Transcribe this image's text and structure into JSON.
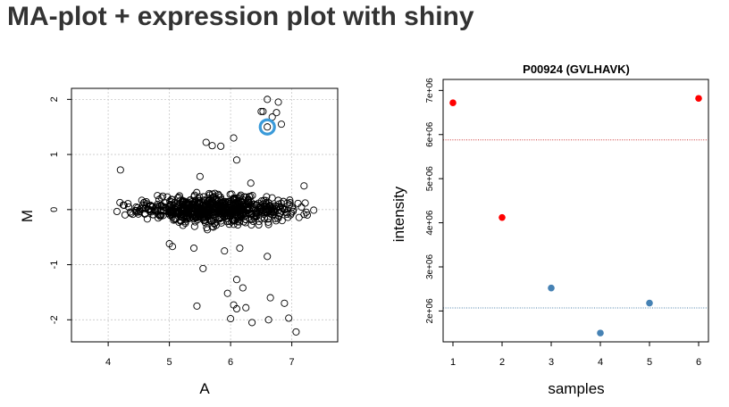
{
  "page": {
    "title": "MA-plot + expression plot with shiny"
  },
  "chart_data": [
    {
      "type": "scatter",
      "title": "",
      "xlabel": "A",
      "ylabel": "M",
      "xlim": [
        3.4,
        7.75
      ],
      "ylim": [
        -2.4,
        2.2
      ],
      "xticks": [
        4,
        5,
        6,
        7
      ],
      "yticks": [
        -2,
        -1,
        0,
        1,
        2
      ],
      "grid": true,
      "highlight": {
        "x": 6.6,
        "y": 1.5,
        "color": "#3a9ad9"
      },
      "bulk_cloud": {
        "x_range": [
          3.9,
          7.55
        ],
        "y_range": [
          -0.5,
          0.45
        ],
        "center_y": 0
      },
      "points": [
        [
          6.6,
          2.0
        ],
        [
          6.78,
          1.95
        ],
        [
          6.5,
          1.78
        ],
        [
          6.53,
          1.78
        ],
        [
          6.75,
          1.76
        ],
        [
          6.68,
          1.68
        ],
        [
          6.6,
          1.5
        ],
        [
          6.83,
          1.55
        ],
        [
          5.6,
          1.22
        ],
        [
          5.7,
          1.16
        ],
        [
          5.84,
          1.15
        ],
        [
          6.05,
          1.3
        ],
        [
          6.1,
          0.9
        ],
        [
          4.2,
          0.72
        ],
        [
          5.5,
          0.6
        ],
        [
          6.33,
          0.48
        ],
        [
          7.2,
          0.43
        ],
        [
          5.0,
          -0.62
        ],
        [
          5.05,
          -0.67
        ],
        [
          5.4,
          -0.7
        ],
        [
          5.9,
          -0.75
        ],
        [
          6.15,
          -0.7
        ],
        [
          6.6,
          -0.85
        ],
        [
          5.55,
          -1.07
        ],
        [
          6.1,
          -1.27
        ],
        [
          5.95,
          -1.52
        ],
        [
          6.2,
          -1.42
        ],
        [
          6.65,
          -1.6
        ],
        [
          6.88,
          -1.7
        ],
        [
          5.45,
          -1.75
        ],
        [
          6.05,
          -1.73
        ],
        [
          6.1,
          -1.8
        ],
        [
          6.25,
          -1.78
        ],
        [
          6.0,
          -1.98
        ],
        [
          6.35,
          -2.05
        ],
        [
          6.62,
          -2.0
        ],
        [
          6.95,
          -1.97
        ],
        [
          7.07,
          -2.22
        ]
      ]
    },
    {
      "type": "scatter",
      "title": "P00924 (GVLHAVK)",
      "xlabel": "samples",
      "ylabel": "intensity",
      "xlim": [
        0.8,
        6.2
      ],
      "ylim": [
        1300000,
        7250000
      ],
      "xticks": [
        1,
        2,
        3,
        4,
        5,
        6
      ],
      "ytick_values": [
        2000000,
        3000000,
        4000000,
        5000000,
        6000000,
        7000000
      ],
      "ytick_labels": [
        "2e+06",
        "3e+06",
        "4e+06",
        "5e+06",
        "6e+06",
        "7e+06"
      ],
      "grid": false,
      "series": [
        {
          "x": [
            1,
            2,
            6
          ],
          "y": [
            6720000,
            4120000,
            6820000
          ],
          "color": "#ff0000"
        },
        {
          "x": [
            3,
            4,
            5
          ],
          "y": [
            2520000,
            1500000,
            2180000
          ],
          "color": "#4682b4"
        }
      ],
      "hlines": [
        {
          "y": 5880000,
          "color": "#cc3333",
          "dash": "1,1.6"
        },
        {
          "y": 2070000,
          "color": "#4a7fa8",
          "dash": "1,1.6"
        }
      ]
    }
  ]
}
